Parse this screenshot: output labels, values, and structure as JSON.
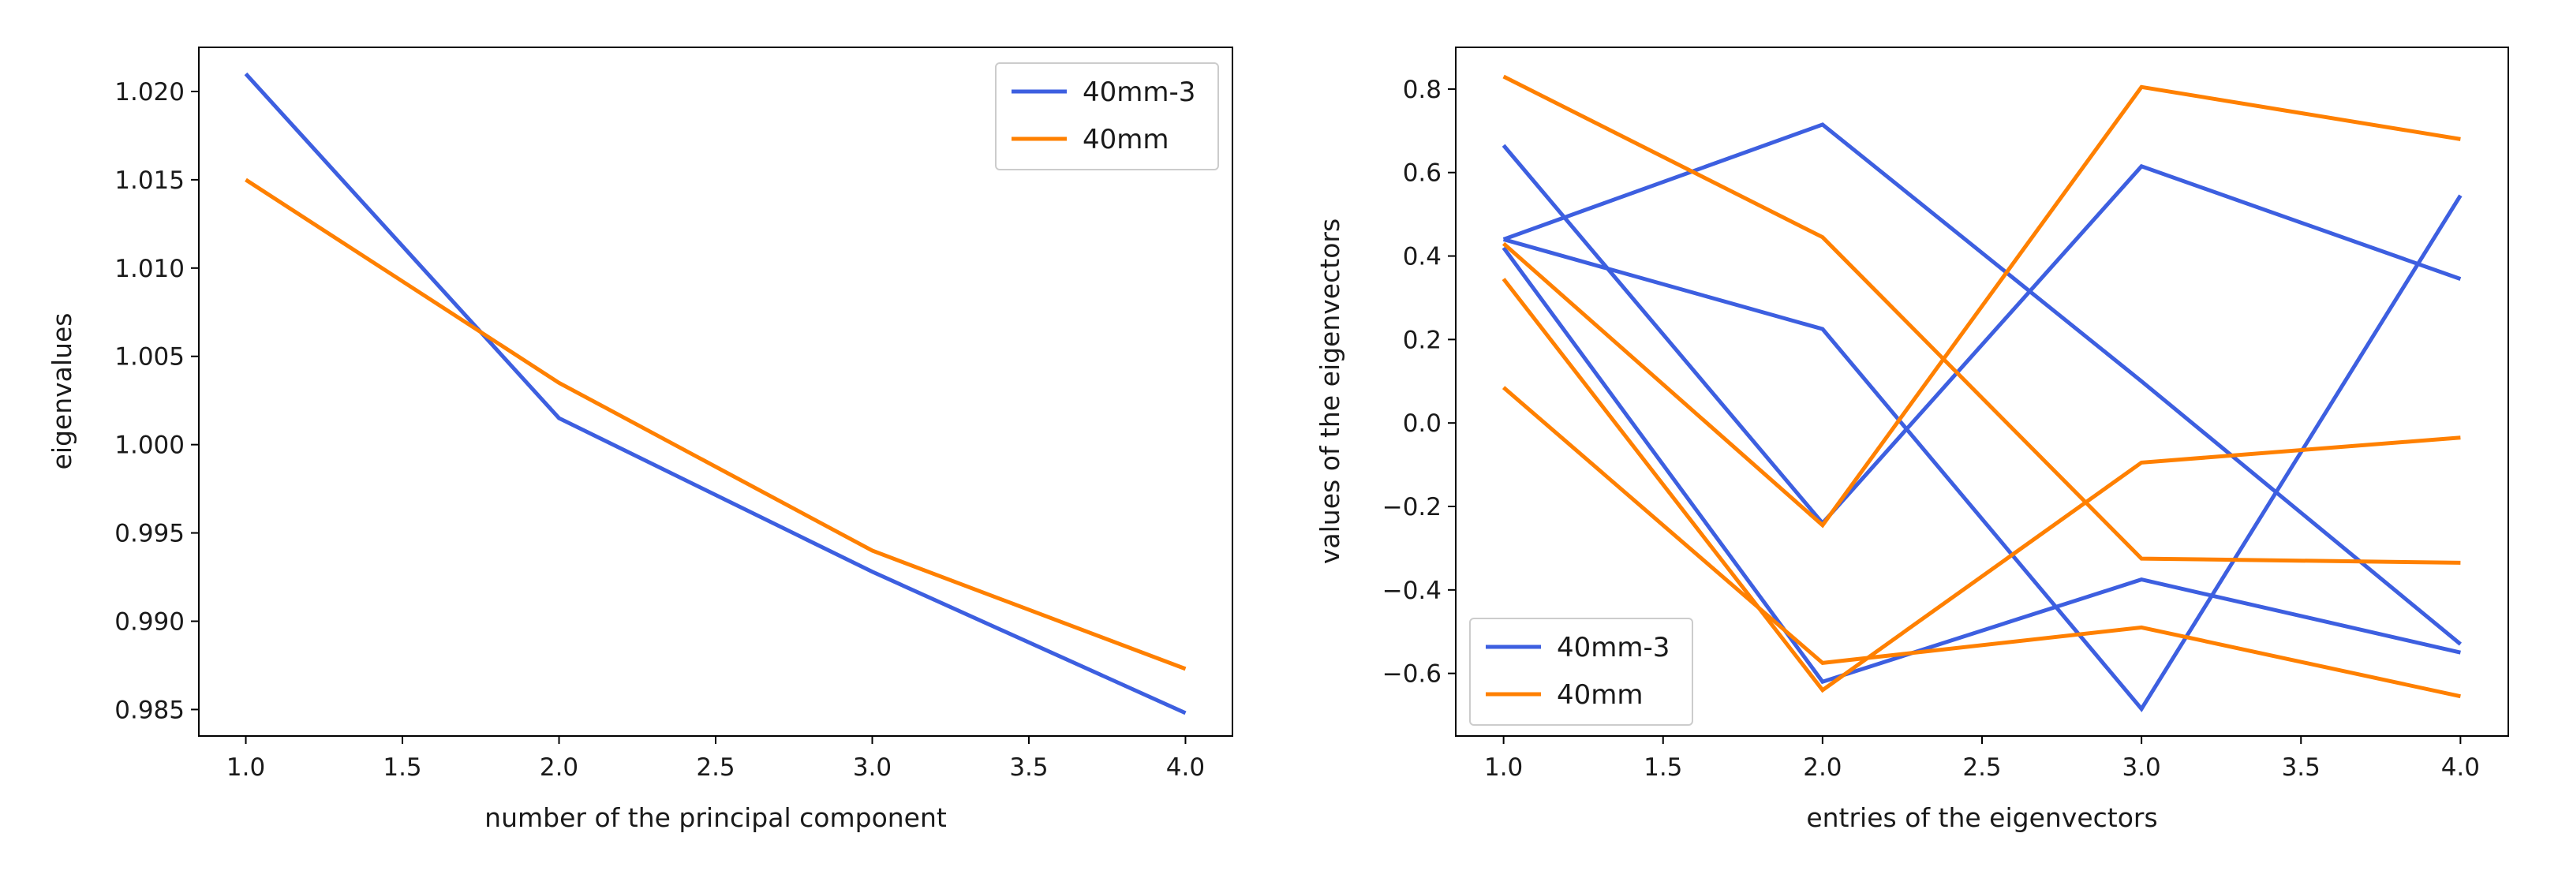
{
  "chart_data": [
    {
      "type": "line",
      "title": "",
      "xlabel": "number of the principal component",
      "ylabel": "eigenvalues",
      "xlim": [
        0.85,
        4.15
      ],
      "ylim": [
        0.9835,
        1.0225
      ],
      "xticks": [
        "1.0",
        "1.5",
        "2.0",
        "2.5",
        "3.0",
        "3.5",
        "4.0"
      ],
      "yticks": [
        "0.985",
        "0.990",
        "0.995",
        "1.000",
        "1.005",
        "1.010",
        "1.015",
        "1.020"
      ],
      "legend": "top-right",
      "x": [
        1,
        2,
        3,
        4
      ],
      "series": [
        {
          "name": "40mm-3",
          "color": "#3d5fe0",
          "values": [
            1.021,
            1.0015,
            0.9928,
            0.9848
          ]
        },
        {
          "name": "40mm",
          "color": "#ff8000",
          "values": [
            1.015,
            1.0035,
            0.994,
            0.9873
          ]
        }
      ]
    },
    {
      "type": "line",
      "title": "",
      "xlabel": "entries of the eigenvectors",
      "ylabel": "values of the eigenvectors",
      "xlim": [
        0.85,
        4.15
      ],
      "ylim": [
        -0.75,
        0.9
      ],
      "xticks": [
        "1.0",
        "1.5",
        "2.0",
        "2.5",
        "3.0",
        "3.5",
        "4.0"
      ],
      "yticks": [
        "−0.6",
        "−0.4",
        "−0.2",
        "0.0",
        "0.2",
        "0.4",
        "0.6",
        "0.8"
      ],
      "legend": "bottom-left",
      "x": [
        1,
        2,
        3,
        4
      ],
      "series": [
        {
          "name": "40mm-3",
          "color": "#3d5fe0",
          "values": [
            0.665,
            -0.24,
            0.615,
            0.345
          ]
        },
        {
          "name": "40mm-3",
          "color": "#3d5fe0",
          "values": [
            0.44,
            0.715,
            0.1,
            -0.53
          ]
        },
        {
          "name": "40mm-3",
          "color": "#3d5fe0",
          "values": [
            0.44,
            0.225,
            -0.685,
            0.545
          ]
        },
        {
          "name": "40mm-3",
          "color": "#3d5fe0",
          "values": [
            0.42,
            -0.62,
            -0.375,
            -0.55
          ]
        },
        {
          "name": "40mm",
          "color": "#ff8000",
          "values": [
            0.83,
            0.445,
            -0.325,
            -0.335
          ]
        },
        {
          "name": "40mm",
          "color": "#ff8000",
          "values": [
            0.43,
            -0.245,
            0.805,
            0.68
          ]
        },
        {
          "name": "40mm",
          "color": "#ff8000",
          "values": [
            0.345,
            -0.64,
            -0.095,
            -0.035
          ]
        },
        {
          "name": "40mm",
          "color": "#ff8000",
          "values": [
            0.085,
            -0.575,
            -0.49,
            -0.655
          ]
        }
      ]
    }
  ],
  "legend_entries": [
    {
      "label": "40mm-3",
      "color": "#3d5fe0"
    },
    {
      "label": "40mm",
      "color": "#ff8000"
    }
  ]
}
